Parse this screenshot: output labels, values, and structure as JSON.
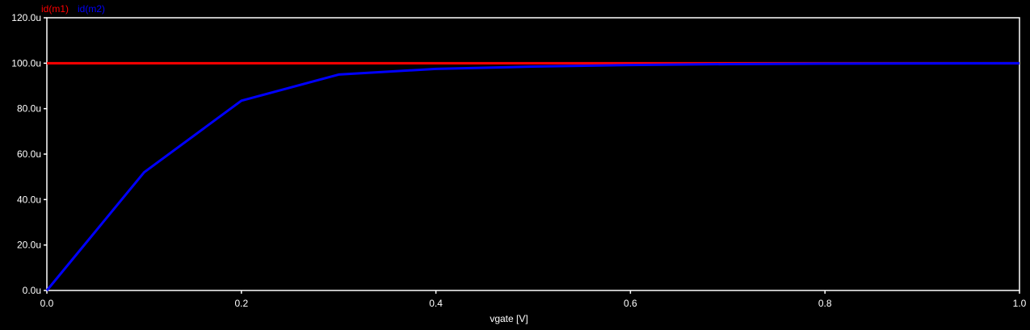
{
  "chart_data": {
    "type": "line",
    "title": "",
    "xlabel": "vgate [V]",
    "ylabel": "",
    "xlim": [
      0,
      1.0
    ],
    "ylim": [
      0,
      120
    ],
    "grid": false,
    "legend_position": "top-left",
    "x_ticks": [
      "0.0",
      "0.2",
      "0.4",
      "0.6",
      "0.8",
      "1.0"
    ],
    "x_tick_values": [
      0,
      0.2,
      0.4,
      0.6,
      0.8,
      1.0
    ],
    "y_ticks": [
      "0.0u",
      "20.0u",
      "40.0u",
      "60.0u",
      "80.0u",
      "100.0u",
      "120.0u"
    ],
    "y_tick_values": [
      0,
      20,
      40,
      60,
      80,
      100,
      120
    ],
    "x": [
      0,
      0.1,
      0.2,
      0.3,
      0.4,
      0.5,
      0.6,
      0.7,
      0.8,
      0.9,
      1.0
    ],
    "series": [
      {
        "name": "id(m1)",
        "color": "#ff0000",
        "values": [
          100,
          100,
          100,
          100,
          100,
          100,
          100,
          100,
          100,
          100,
          100
        ]
      },
      {
        "name": "id(m2)",
        "color": "#0000ff",
        "values": [
          0,
          52,
          83.5,
          95,
          97.5,
          98.5,
          99.2,
          99.6,
          99.8,
          99.9,
          100
        ]
      }
    ],
    "axis_color": "#ffffff",
    "background_color": "#000000"
  }
}
